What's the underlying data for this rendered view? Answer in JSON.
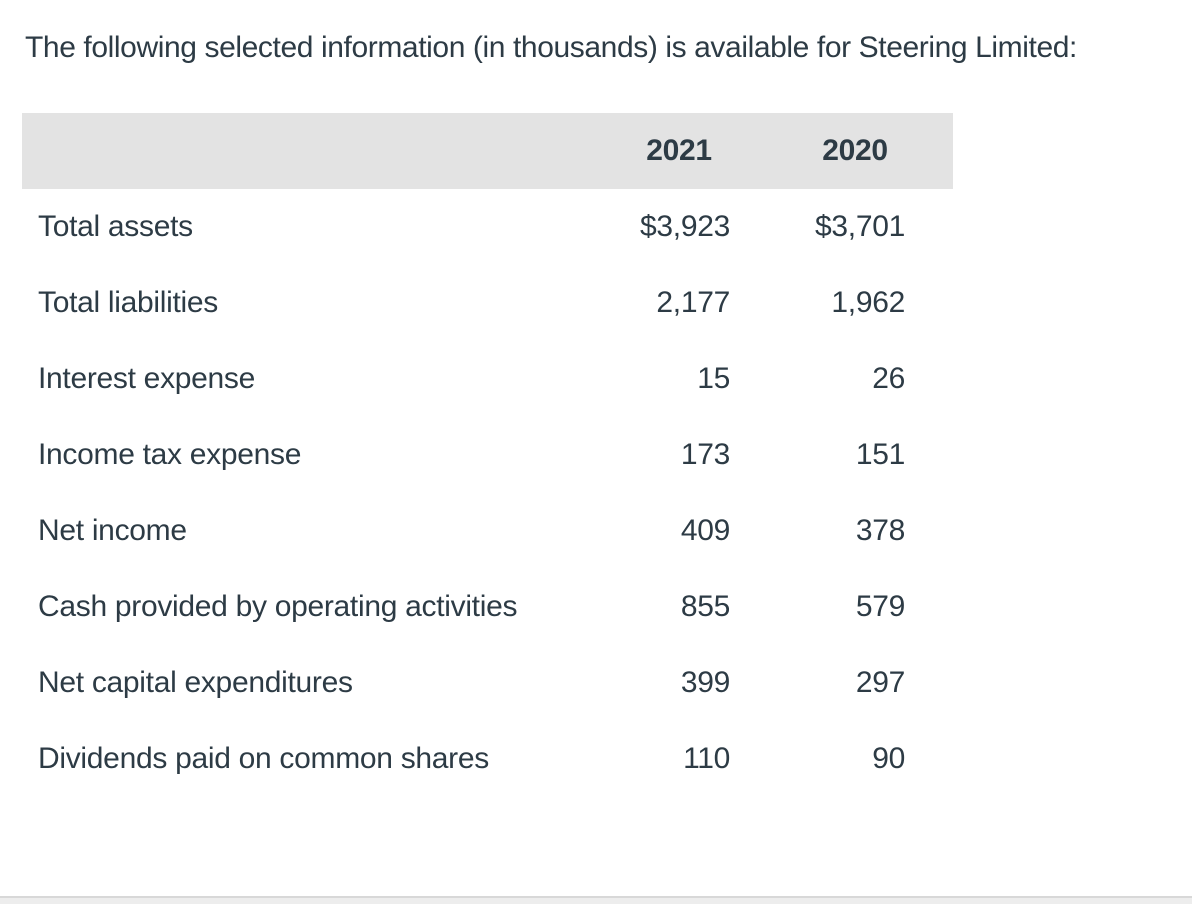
{
  "page": {
    "title": "The following selected information (in thousands) is available for Steering Limited:"
  },
  "table": {
    "header": {
      "col_2021": "2021",
      "col_2020": "2020"
    },
    "rows": [
      {
        "label": "Total assets",
        "v2021": "$3,923",
        "v2020": "$3,701"
      },
      {
        "label": "Total liabilities",
        "v2021": "2,177",
        "v2020": "1,962"
      },
      {
        "label": "Interest expense",
        "v2021": "15",
        "v2020": "26"
      },
      {
        "label": "Income tax expense",
        "v2021": "173",
        "v2020": "151"
      },
      {
        "label": "Net income",
        "v2021": "409",
        "v2020": "378"
      },
      {
        "label": "Cash provided by operating activities",
        "v2021": "855",
        "v2020": "579"
      },
      {
        "label": "Net capital expenditures",
        "v2021": "399",
        "v2020": "297"
      },
      {
        "label": "Dividends paid on common shares",
        "v2021": "110",
        "v2020": "90"
      }
    ]
  },
  "colors": {
    "text": "#2D3B45",
    "header_background": "#E3E3E3",
    "divider_line": "#D8D8D8",
    "divider_fill": "#EDEDED",
    "page_background": "#FFFFFF"
  }
}
